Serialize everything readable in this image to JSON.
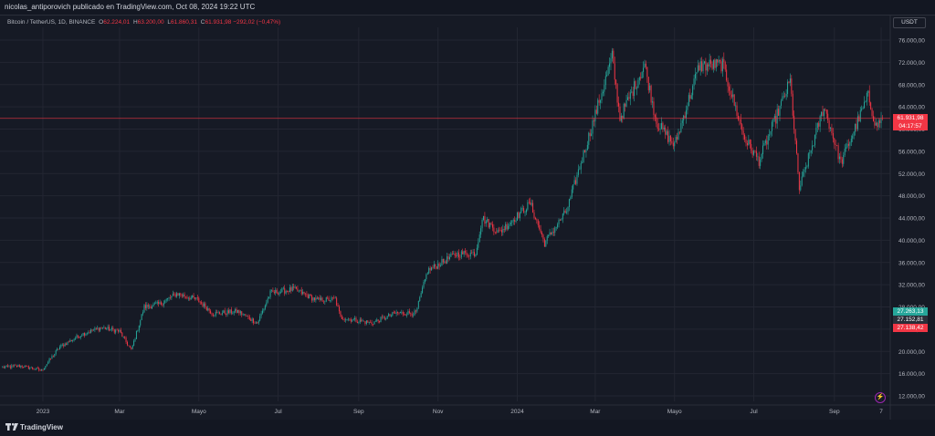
{
  "header": {
    "publisher_line": "nicolas_antiporovich publicado en TradingView.com, Oct 08, 2024 19:22 UTC"
  },
  "legend": {
    "symbol": "Bitcoin / TetherUS, 1D, BINANCE",
    "open_key": "O",
    "open": "62.224,01",
    "high_key": "H",
    "high": "63.200,00",
    "low_key": "L",
    "low": "61.860,31",
    "close_key": "C",
    "close": "61.931,98",
    "change": "−292,02 (−0,47%)"
  },
  "toolbar": {
    "currency_label": "USDT"
  },
  "price_tags": {
    "last_price": "61.931,98",
    "countdown": "04:17:57",
    "tag_green": "27.263,13",
    "tag_dark": "27.152,81",
    "tag_red": "27.138,42"
  },
  "footer": {
    "brand": "TradingView",
    "flash_icon": "lightning-icon"
  },
  "colors": {
    "up": "#26a69a",
    "down": "#f23645",
    "background": "#161a25",
    "grid": "#232632",
    "price_line": "#f23645"
  },
  "chart_data": {
    "type": "candlestick",
    "title": "Bitcoin / TetherUS, 1D, BINANCE",
    "y_ticks": [
      "76.000,00",
      "72.000,00",
      "68.000,00",
      "64.000,00",
      "60.000,00",
      "56.000,00",
      "52.000,00",
      "48.000,00",
      "44.000,00",
      "40.000,00",
      "36.000,00",
      "32.000,00",
      "28.000,00",
      "24.000,00",
      "20.000,00",
      "16.000,00",
      "12.000,00"
    ],
    "y_tick_values": [
      76000,
      72000,
      68000,
      64000,
      60000,
      56000,
      52000,
      48000,
      44000,
      40000,
      36000,
      32000,
      28000,
      24000,
      20000,
      16000,
      12000
    ],
    "x_ticks": [
      "2023",
      "Mar",
      "Mayo",
      "Jul",
      "Sep",
      "Nov",
      "2024",
      "Mar",
      "Mayo",
      "Jul",
      "Sep",
      "7"
    ],
    "ylim": [
      10000,
      78000
    ],
    "last_close": 61931.98,
    "grid": true,
    "price_path": [
      [
        "2022-12-01",
        17100
      ],
      [
        "2022-12-15",
        17400
      ],
      [
        "2022-12-31",
        16600
      ],
      [
        "2023-01-14",
        20800
      ],
      [
        "2023-01-31",
        23100
      ],
      [
        "2023-02-15",
        24300
      ],
      [
        "2023-03-01",
        23600
      ],
      [
        "2023-03-10",
        20200
      ],
      [
        "2023-03-20",
        28000
      ],
      [
        "2023-04-01",
        28500
      ],
      [
        "2023-04-14",
        30400
      ],
      [
        "2023-04-30",
        29300
      ],
      [
        "2023-05-12",
        26800
      ],
      [
        "2023-05-31",
        27200
      ],
      [
        "2023-06-15",
        25100
      ],
      [
        "2023-06-25",
        30500
      ],
      [
        "2023-07-13",
        31200
      ],
      [
        "2023-07-31",
        29200
      ],
      [
        "2023-08-14",
        29400
      ],
      [
        "2023-08-18",
        26100
      ],
      [
        "2023-09-11",
        25100
      ],
      [
        "2023-09-30",
        26900
      ],
      [
        "2023-10-15",
        26900
      ],
      [
        "2023-10-24",
        34500
      ],
      [
        "2023-11-15",
        37500
      ],
      [
        "2023-11-30",
        37700
      ],
      [
        "2023-12-05",
        44000
      ],
      [
        "2023-12-18",
        41400
      ],
      [
        "2024-01-11",
        46600
      ],
      [
        "2024-01-22",
        39500
      ],
      [
        "2024-02-08",
        45300
      ],
      [
        "2024-02-28",
        61000
      ],
      [
        "2024-03-14",
        73000
      ],
      [
        "2024-03-20",
        62000
      ],
      [
        "2024-04-08",
        71600
      ],
      [
        "2024-04-17",
        61300
      ],
      [
        "2024-05-01",
        57000
      ],
      [
        "2024-05-20",
        71400
      ],
      [
        "2024-06-07",
        71600
      ],
      [
        "2024-06-24",
        58300
      ],
      [
        "2024-07-05",
        54300
      ],
      [
        "2024-07-29",
        68600
      ],
      [
        "2024-08-05",
        49200
      ],
      [
        "2024-08-24",
        64100
      ],
      [
        "2024-09-06",
        53900
      ],
      [
        "2024-09-27",
        66000
      ],
      [
        "2024-10-03",
        60500
      ],
      [
        "2024-10-08",
        61932
      ]
    ]
  }
}
